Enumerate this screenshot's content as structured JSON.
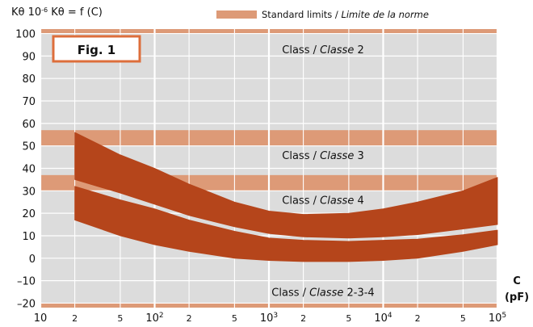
{
  "chart_data": {
    "type": "area",
    "title": "Kθ 10⁻⁶ Kθ = f (C)",
    "title_parts": {
      "a": "Kθ 10",
      "exp": "-6",
      "b": " Kθ = f (C)"
    },
    "figure_label": "Fig. 1",
    "legend": {
      "label_plain": "Standard limits / ",
      "label_italic": "Limite de la norme",
      "color": "#dd9a77",
      "placement": "top-right"
    },
    "xaxis": {
      "scale": "log",
      "range": [
        10,
        100000
      ],
      "label": "C",
      "unit": "(pF)",
      "ticks": [
        {
          "value": 10,
          "label": "10",
          "kind": "decade"
        },
        {
          "value": 20,
          "label": "2",
          "kind": "minor"
        },
        {
          "value": 50,
          "label": "5",
          "kind": "minor"
        },
        {
          "value": 100,
          "label": "10",
          "exp": "2",
          "kind": "decade"
        },
        {
          "value": 200,
          "label": "2",
          "kind": "minor"
        },
        {
          "value": 500,
          "label": "5",
          "kind": "minor"
        },
        {
          "value": 1000,
          "label": "10",
          "exp": "3",
          "kind": "decade"
        },
        {
          "value": 2000,
          "label": "2",
          "kind": "minor"
        },
        {
          "value": 5000,
          "label": "5",
          "kind": "minor"
        },
        {
          "value": 10000,
          "label": "10",
          "exp": "4",
          "kind": "decade"
        },
        {
          "value": 20000,
          "label": "2",
          "kind": "minor"
        },
        {
          "value": 50000,
          "label": "5",
          "kind": "minor"
        },
        {
          "value": 100000,
          "label": "10",
          "exp": "5",
          "kind": "decade"
        }
      ]
    },
    "yaxis": {
      "range": [
        -22,
        102
      ],
      "ticks": [
        {
          "value": 100,
          "label": "100"
        },
        {
          "value": 90,
          "label": "90"
        },
        {
          "value": 80,
          "label": "80"
        },
        {
          "value": 70,
          "label": "70"
        },
        {
          "value": 60,
          "label": "60"
        },
        {
          "value": 50,
          "label": "50"
        },
        {
          "value": 40,
          "label": "40"
        },
        {
          "value": 30,
          "label": "30"
        },
        {
          "value": 20,
          "label": "20"
        },
        {
          "value": 10,
          "label": "10"
        },
        {
          "value": 0,
          "label": "0"
        },
        {
          "value": -10,
          "label": "–10"
        },
        {
          "value": -20,
          "label": "–20"
        }
      ]
    },
    "grid": true,
    "limit_bands": [
      {
        "y1": 100,
        "y2": 102,
        "class_plain": "Class / ",
        "class_italic": "Classe",
        "class_num": " 2",
        "label_y": 93
      },
      {
        "y1": 50,
        "y2": 57,
        "class_plain": "Class / ",
        "class_italic": "Classe",
        "class_num": " 3",
        "label_y": 46
      },
      {
        "y1": 30,
        "y2": 37,
        "class_plain": "Class / ",
        "class_italic": "Classe",
        "class_num": " 4",
        "label_y": 26
      },
      {
        "y1": -22,
        "y2": -20,
        "class_plain": "Class / ",
        "class_italic": "Classe",
        "class_num": " 2-3-4",
        "label_y": -15
      }
    ],
    "series": [
      {
        "color": "#b5451b",
        "x": [
          20,
          50,
          100,
          200,
          500,
          1000,
          2000,
          5000,
          10000,
          20000,
          50000,
          100000
        ],
        "upper": [
          56,
          46,
          40,
          33,
          25,
          21,
          19.5,
          20,
          22,
          25,
          30,
          36
        ],
        "lower": [
          35,
          29,
          24,
          19,
          14,
          11,
          9.5,
          9,
          9.5,
          10.5,
          13,
          15
        ]
      },
      {
        "color": "#b5451b",
        "x": [
          20,
          50,
          100,
          200,
          500,
          1000,
          2000,
          5000,
          10000,
          20000,
          50000,
          100000
        ],
        "upper": [
          32,
          26,
          22,
          17,
          12,
          9,
          8,
          7.5,
          8,
          8.5,
          10.5,
          12.5
        ],
        "lower": [
          17,
          10,
          6,
          3,
          0,
          -1,
          -1.5,
          -1.5,
          -1,
          0,
          3,
          6
        ]
      }
    ]
  }
}
